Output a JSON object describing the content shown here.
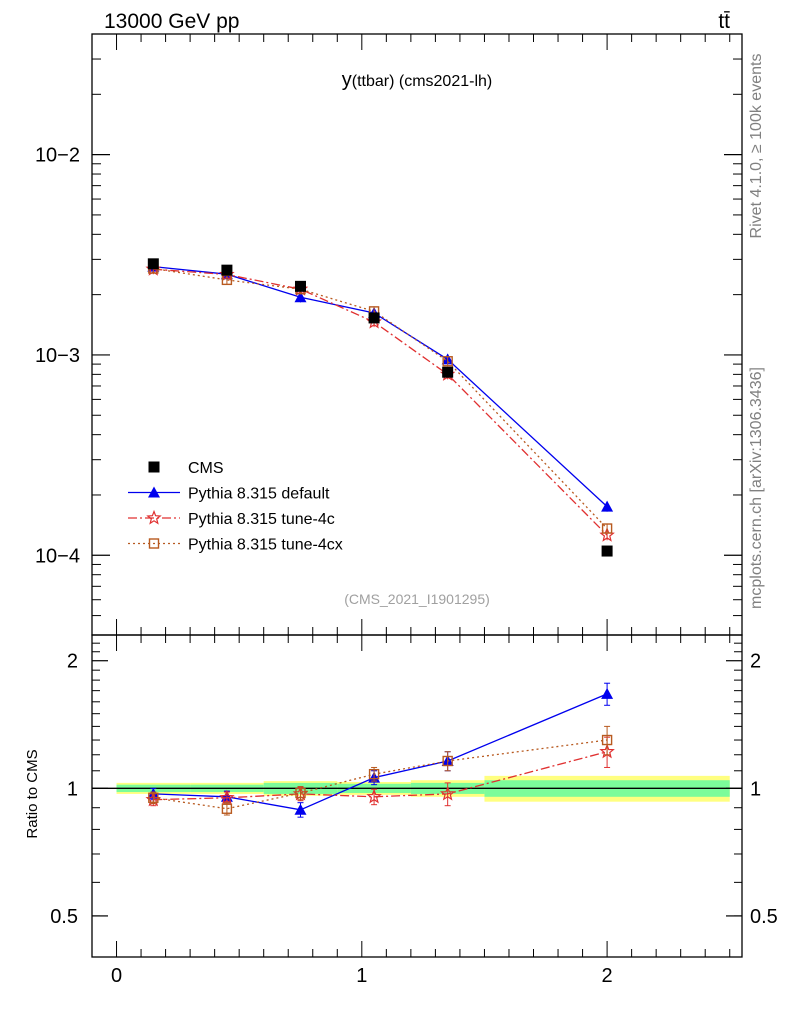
{
  "header": {
    "left": "13000 GeV pp",
    "right": "tt̄"
  },
  "side_labels": {
    "top": "Rivet 4.1.0, ≥ 100k events",
    "bottom": "mcplots.cern.ch [arXiv:1306.3436]"
  },
  "chart_data": {
    "type": "line",
    "title": "y(ttbar) (cms2021-lh)",
    "title_main": "y",
    "title_sub": "(ttbar) (cms2021-lh)",
    "watermark": "(CMS_2021_I1901295)",
    "xlabel": "",
    "ylabel": "",
    "ratio_ylabel": "Ratio to CMS",
    "xlim": [
      -0.1,
      2.55
    ],
    "ylim": [
      4e-05,
      0.04
    ],
    "yscale": "log",
    "ratio_ylim": [
      0.4,
      2.3
    ],
    "xticks": [
      "0",
      "1",
      "2"
    ],
    "yticks": [
      "10−2",
      "10−3",
      "10−4"
    ],
    "ratio_yticks": [
      "2",
      "1",
      "0.5"
    ],
    "ratio_tick_values": [
      2,
      1,
      0.5
    ],
    "x": [
      0.15,
      0.45,
      0.75,
      1.05,
      1.35,
      2.0
    ],
    "data": {
      "name": "CMS",
      "values": [
        0.00285,
        0.00265,
        0.0022,
        0.00153,
        0.00082,
        0.000105
      ],
      "color": "#000000"
    },
    "band_edges": [
      0.0,
      0.3,
      0.6,
      0.9,
      1.2,
      1.5,
      2.5
    ],
    "band_inner": [
      0.02,
      0.02,
      0.03,
      0.025,
      0.03,
      0.045
    ],
    "band_outer": [
      0.03,
      0.03,
      0.04,
      0.035,
      0.045,
      0.07
    ],
    "band_colors": {
      "inner": "#7cfc9a",
      "outer": "#ffff80"
    },
    "series": [
      {
        "name": "Pythia 8.315 default",
        "values": [
          0.00276,
          0.00253,
          0.00194,
          0.00162,
          0.00095,
          0.000175
        ],
        "ratio": [
          0.97,
          0.955,
          0.89,
          1.06,
          1.16,
          1.67
        ],
        "ratio_err": [
          0.03,
          0.03,
          0.035,
          0.04,
          0.06,
          0.1
        ],
        "color": "#0000ee",
        "marker": "triangle",
        "dash": ""
      },
      {
        "name": "Pythia 8.315 tune-4c",
        "values": [
          0.00268,
          0.00252,
          0.00213,
          0.00146,
          0.0008,
          0.000126
        ],
        "ratio": [
          0.94,
          0.95,
          0.97,
          0.955,
          0.97,
          1.22
        ],
        "ratio_err": [
          0.03,
          0.03,
          0.035,
          0.04,
          0.06,
          0.1
        ],
        "color": "#e03030",
        "marker": "star",
        "dash": "9,3,2,3"
      },
      {
        "name": "Pythia 8.315 tune-4cx",
        "values": [
          0.0027,
          0.00237,
          0.00213,
          0.00165,
          0.00093,
          0.000136
        ],
        "ratio": [
          0.95,
          0.895,
          0.975,
          1.08,
          1.16,
          1.3
        ],
        "ratio_err": [
          0.03,
          0.03,
          0.035,
          0.04,
          0.06,
          0.1
        ],
        "color": "#b85a20",
        "marker": "square",
        "dash": "2,3"
      }
    ]
  }
}
